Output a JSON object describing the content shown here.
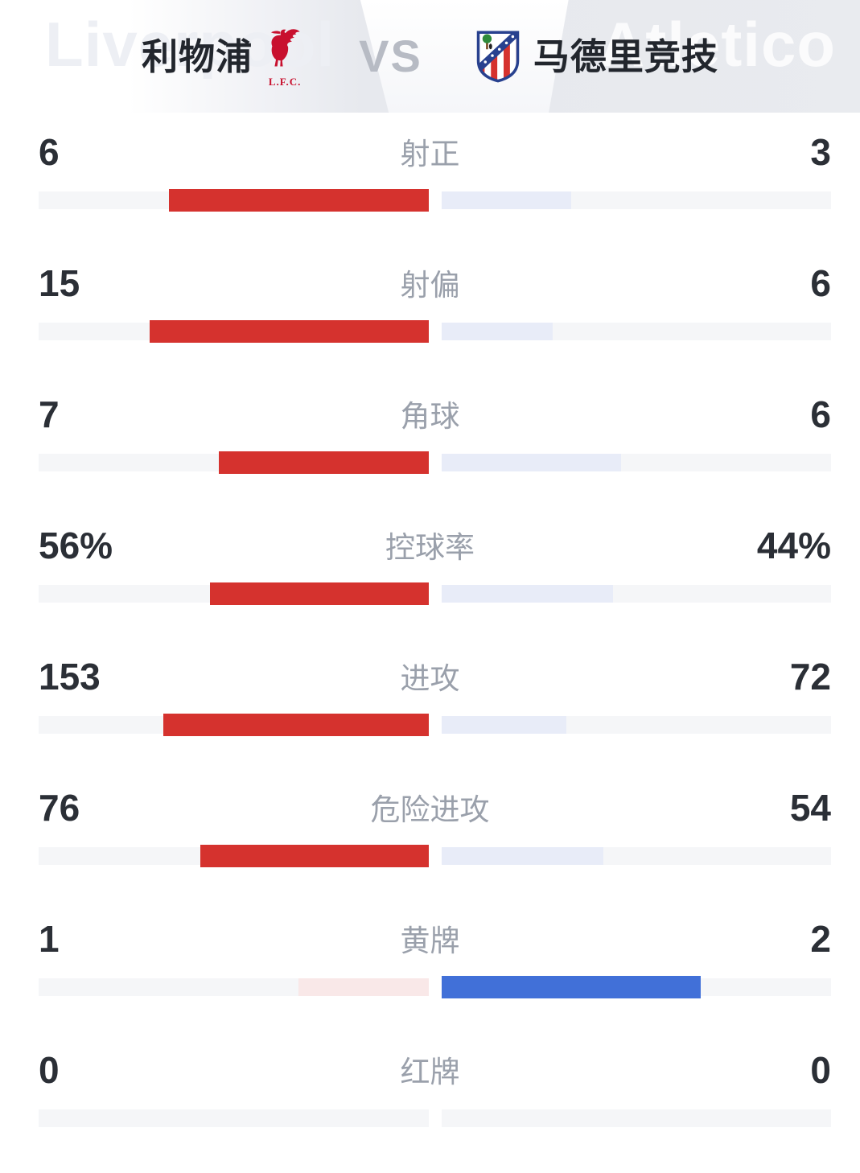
{
  "header": {
    "home_team": {
      "name": "利物浦",
      "watermark": "Liverpool",
      "crest_icon": "liverpool-liver-bird-crest",
      "crest_caption": "L.F.C."
    },
    "vs_label": "VS",
    "away_team": {
      "name": "马德里竞技",
      "watermark": "Atletico",
      "crest_icon": "atletico-madrid-crest"
    }
  },
  "colors": {
    "home_win_bar": "#d5322e",
    "home_lose_bar": "#f9e8e8",
    "away_win_bar": "#4170d8",
    "away_lose_bar": "#e8ecf8",
    "bar_track": "#f5f6f8",
    "number_text": "#2b2f36",
    "label_text": "#9aa0ab",
    "liverpool_red": "#c8102e",
    "atletico_navy": "#28418f"
  },
  "stats": [
    {
      "key": "shots-on-target",
      "label": "射正",
      "home": "6",
      "away": "3",
      "home_val": 6,
      "away_val": 3
    },
    {
      "key": "shots-off-target",
      "label": "射偏",
      "home": "15",
      "away": "6",
      "home_val": 15,
      "away_val": 6
    },
    {
      "key": "corners",
      "label": "角球",
      "home": "7",
      "away": "6",
      "home_val": 7,
      "away_val": 6
    },
    {
      "key": "possession",
      "label": "控球率",
      "home": "56%",
      "away": "44%",
      "home_val": 56,
      "away_val": 44
    },
    {
      "key": "attacks",
      "label": "进攻",
      "home": "153",
      "away": "72",
      "home_val": 153,
      "away_val": 72
    },
    {
      "key": "dangerous-attacks",
      "label": "危险进攻",
      "home": "76",
      "away": "54",
      "home_val": 76,
      "away_val": 54
    },
    {
      "key": "yellow-cards",
      "label": "黄牌",
      "home": "1",
      "away": "2",
      "home_val": 1,
      "away_val": 2
    },
    {
      "key": "red-cards",
      "label": "红牌",
      "home": "0",
      "away": "0",
      "home_val": 0,
      "away_val": 0
    }
  ],
  "chart_data": {
    "type": "bar",
    "orientation": "horizontal-paired-from-center",
    "title": "利物浦 VS 马德里竞技",
    "categories": [
      "射正",
      "射偏",
      "角球",
      "控球率",
      "进攻",
      "危险进攻",
      "黄牌",
      "红牌"
    ],
    "series": [
      {
        "name": "利物浦",
        "values": [
          6,
          15,
          7,
          56,
          153,
          76,
          1,
          0
        ]
      },
      {
        "name": "马德里竞技",
        "values": [
          3,
          6,
          6,
          44,
          72,
          54,
          2,
          0
        ]
      }
    ],
    "value_display": [
      [
        "6",
        "3"
      ],
      [
        "15",
        "6"
      ],
      [
        "7",
        "6"
      ],
      [
        "56%",
        "44%"
      ],
      [
        "153",
        "72"
      ],
      [
        "76",
        "54"
      ],
      [
        "1",
        "2"
      ],
      [
        "0",
        "0"
      ]
    ],
    "bar_rule": "each side fills value/(home+away) of its half-track from the center outward; the larger value is drawn solid and thicker (home=red, away=blue), the smaller value as a pale tint",
    "legend_position": "header",
    "grid": false
  }
}
